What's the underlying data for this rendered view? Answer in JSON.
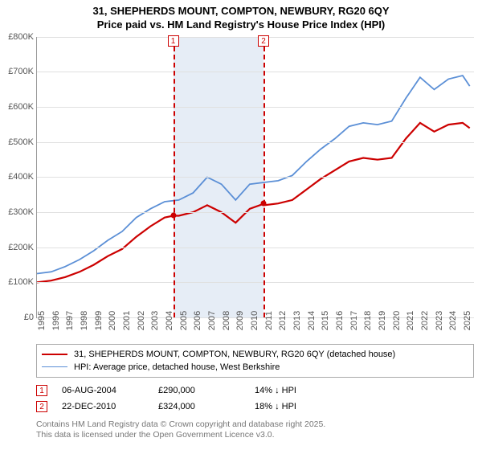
{
  "title_line1": "31, SHEPHERDS MOUNT, COMPTON, NEWBURY, RG20 6QY",
  "title_line2": "Price paid vs. HM Land Registry's House Price Index (HPI)",
  "chart": {
    "type": "line",
    "background_color": "#ffffff",
    "grid_color": "#e0e0e0",
    "border_color": "#999999",
    "x_axis": {
      "min": 1995,
      "max": 2025.8,
      "ticks": [
        1995,
        1996,
        1997,
        1998,
        1999,
        2000,
        2001,
        2002,
        2003,
        2004,
        2005,
        2006,
        2007,
        2008,
        2009,
        2010,
        2011,
        2012,
        2013,
        2014,
        2015,
        2016,
        2017,
        2018,
        2019,
        2020,
        2021,
        2022,
        2023,
        2024,
        2025
      ],
      "label_fontsize": 11,
      "label_color": "#555555"
    },
    "y_axis": {
      "min": 0,
      "max": 800000,
      "ticks": [
        0,
        100000,
        200000,
        300000,
        400000,
        500000,
        600000,
        700000,
        800000
      ],
      "tick_labels": [
        "£0",
        "£100K",
        "£200K",
        "£300K",
        "£400K",
        "£500K",
        "£600K",
        "£700K",
        "£800K"
      ],
      "label_fontsize": 11,
      "label_color": "#555555"
    },
    "shaded_region": {
      "x_start": 2004.6,
      "x_end": 2010.97,
      "fill_color": "#c8d7eb",
      "fill_opacity": 0.45
    },
    "series": [
      {
        "name": "red",
        "color": "#cc0000",
        "line_width": 2.2,
        "x": [
          1995,
          1996,
          1997,
          1998,
          1999,
          2000,
          2001,
          2002,
          2003,
          2004,
          2004.6,
          2005,
          2006,
          2007,
          2008,
          2009,
          2010,
          2010.97,
          2011,
          2012,
          2013,
          2014,
          2015,
          2016,
          2017,
          2018,
          2019,
          2020,
          2021,
          2022,
          2023,
          2024,
          2025,
          2025.5
        ],
        "y": [
          100000,
          105000,
          115000,
          130000,
          150000,
          175000,
          195000,
          230000,
          260000,
          285000,
          290000,
          290000,
          300000,
          320000,
          300000,
          270000,
          310000,
          324000,
          320000,
          325000,
          335000,
          365000,
          395000,
          420000,
          445000,
          455000,
          450000,
          455000,
          510000,
          555000,
          530000,
          550000,
          555000,
          540000
        ]
      },
      {
        "name": "blue",
        "color": "#5b8fd6",
        "line_width": 1.8,
        "x": [
          1995,
          1996,
          1997,
          1998,
          1999,
          2000,
          2001,
          2002,
          2003,
          2004,
          2005,
          2006,
          2007,
          2008,
          2009,
          2010,
          2011,
          2012,
          2013,
          2014,
          2015,
          2016,
          2017,
          2018,
          2019,
          2020,
          2021,
          2022,
          2023,
          2024,
          2025,
          2025.5
        ],
        "y": [
          125000,
          130000,
          145000,
          165000,
          190000,
          220000,
          245000,
          285000,
          310000,
          330000,
          335000,
          355000,
          400000,
          380000,
          335000,
          380000,
          385000,
          390000,
          405000,
          445000,
          480000,
          510000,
          545000,
          555000,
          550000,
          560000,
          625000,
          685000,
          650000,
          680000,
          690000,
          660000
        ]
      }
    ],
    "markers": [
      {
        "label": "1",
        "x": 2004.6,
        "box_border": "#cc0000",
        "box_text_color": "#cc0000",
        "dash_color": "#cc0000"
      },
      {
        "label": "2",
        "x": 2010.97,
        "box_border": "#cc0000",
        "box_text_color": "#cc0000",
        "dash_color": "#cc0000"
      }
    ],
    "points": [
      {
        "x": 2004.6,
        "y": 290000,
        "color": "#cc0000"
      },
      {
        "x": 2010.97,
        "y": 324000,
        "color": "#cc0000"
      }
    ]
  },
  "legend": {
    "border_color": "#aaaaaa",
    "items": [
      {
        "color": "#cc0000",
        "width": 2.2,
        "label": "31, SHEPHERDS MOUNT, COMPTON, NEWBURY, RG20 6QY (detached house)"
      },
      {
        "color": "#5b8fd6",
        "width": 1.8,
        "label": "HPI: Average price, detached house, West Berkshire"
      }
    ]
  },
  "transactions": [
    {
      "marker": "1",
      "date": "06-AUG-2004",
      "price": "£290,000",
      "delta": "14% ↓ HPI"
    },
    {
      "marker": "2",
      "date": "22-DEC-2010",
      "price": "£324,000",
      "delta": "18% ↓ HPI"
    }
  ],
  "footer_line1": "Contains HM Land Registry data © Crown copyright and database right 2025.",
  "footer_line2": "This data is licensed under the Open Government Licence v3.0."
}
